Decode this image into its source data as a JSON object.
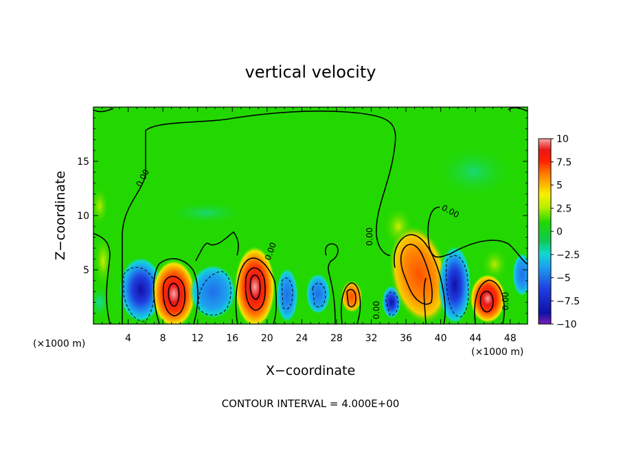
{
  "chart_data": {
    "type": "heatmap",
    "title": "vertical velocity",
    "xlabel": "X−coordinate",
    "ylabel": "Z−coordinate",
    "x_unit_left": "(×1000 m)",
    "x_unit_right": "(×1000 m)",
    "footer": "CONTOUR INTERVAL = 4.000E+00",
    "xlim": [
      0,
      50
    ],
    "ylim": [
      0,
      20
    ],
    "xticks": [
      "4",
      "8",
      "12",
      "16",
      "20",
      "24",
      "28",
      "32",
      "36",
      "40",
      "44",
      "48"
    ],
    "xtick_values": [
      4,
      8,
      12,
      16,
      20,
      24,
      28,
      32,
      36,
      40,
      44,
      48
    ],
    "yticks": [
      "5",
      "10",
      "15"
    ],
    "ytick_values": [
      5,
      10,
      15
    ],
    "contour_labels": [
      "0.00",
      "0.00",
      "0.00",
      "0.00",
      "0.00",
      "0.00"
    ],
    "colorbar": {
      "ticks": [
        "10",
        "7.5",
        "5",
        "2.5",
        "0",
        "−2.5",
        "−5",
        "−7.5",
        "−10"
      ],
      "tick_values": [
        10,
        7.5,
        5,
        2.5,
        0,
        -2.5,
        -5,
        -7.5,
        -10
      ],
      "range": [
        -10,
        10
      ],
      "colors": [
        "#7a1fb3",
        "#1010a8",
        "#1f3fe0",
        "#1ea0f0",
        "#12d8d0",
        "#10c850",
        "#22d800",
        "#b8ee00",
        "#f6f000",
        "#ffb000",
        "#ff7000",
        "#ff2000",
        "#e81818",
        "#f07070",
        "#f7a8a8"
      ]
    },
    "features": [
      {
        "x": 5.5,
        "z": 3.2,
        "w": -8
      },
      {
        "x": 9.5,
        "z": 2.8,
        "w": 9
      },
      {
        "x": 13.8,
        "z": 2.6,
        "w": -5
      },
      {
        "x": 18.8,
        "z": 3.6,
        "w": 10
      },
      {
        "x": 22.5,
        "z": 2.5,
        "w": -3
      },
      {
        "x": 26.0,
        "z": 2.6,
        "w": -5
      },
      {
        "x": 30.0,
        "z": 2.6,
        "w": 4
      },
      {
        "x": 34.2,
        "z": 1.8,
        "w": -8
      },
      {
        "x": 37.0,
        "z": 4.0,
        "w": 6
      },
      {
        "x": 41.5,
        "z": 3.0,
        "w": -8
      },
      {
        "x": 45.2,
        "z": 2.5,
        "w": 8
      },
      {
        "x": 49.3,
        "z": 4.0,
        "w": -3
      }
    ]
  }
}
